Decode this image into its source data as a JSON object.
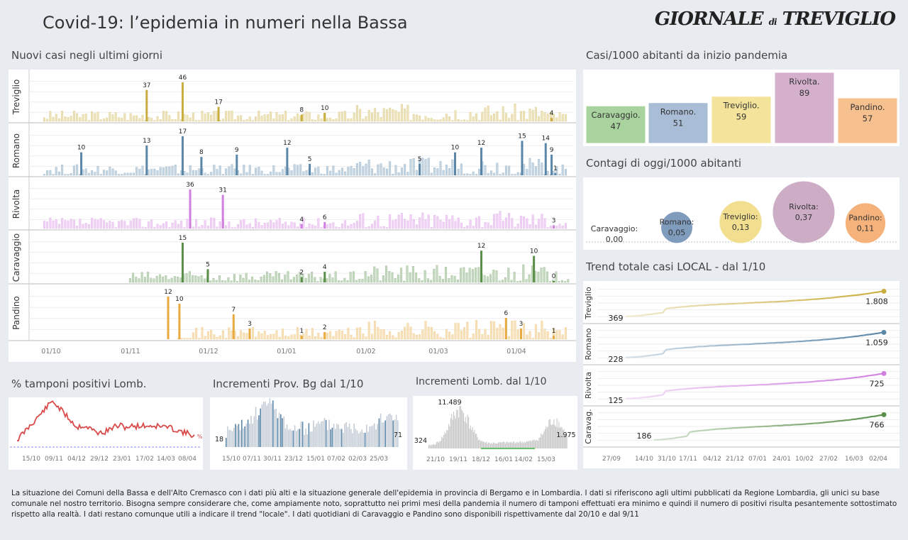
{
  "header": {
    "title": "Covid-19: l’epidemia  in numeri nella Bassa",
    "logo": "GIORNALE di TREVIGLIO"
  },
  "sections": {
    "new_cases": "Nuovi casi negli ultimi  giorni",
    "per1000": "Casi/1000 abitanti da inizio pandemia",
    "today": "Contagi di oggi/1000 abitanti",
    "trend": "Trend totale casi  LOCAL - dal 1/10",
    "tamponi": "% tamponi positivi Lomb.",
    "prov_bg": "Incrementi Prov. Bg dal 1/10",
    "lomb": "Incrementi Lomb. dal 1/10"
  },
  "colors": {
    "Treviglio": "#c9ad3e",
    "Romano": "#5a86a8",
    "Rivolta": "#d07fe0",
    "Caravaggio": "#5a8f4a",
    "Pandino": "#e8a93e"
  },
  "chart_data": [
    {
      "type": "bar",
      "name": "new_cases",
      "x_ticks": [
        "01/10",
        "01/11",
        "01/12",
        "01/01",
        "01/02",
        "01/03",
        "01/04"
      ],
      "series": [
        {
          "name": "Treviglio",
          "annotations": [
            37,
            46,
            17,
            8,
            10,
            4
          ]
        },
        {
          "name": "Romano",
          "annotations": [
            10,
            13,
            17,
            8,
            9,
            12,
            5,
            5,
            10,
            12,
            15,
            14,
            9,
            1
          ]
        },
        {
          "name": "Rivolta",
          "annotations": [
            36,
            31,
            4,
            6,
            3
          ]
        },
        {
          "name": "Caravaggio",
          "annotations": [
            15,
            5,
            2,
            4,
            12,
            10,
            0
          ]
        },
        {
          "name": "Pandino",
          "annotations": [
            12,
            10,
            7,
            3,
            1,
            2,
            6,
            3,
            1
          ]
        }
      ]
    },
    {
      "type": "bar",
      "name": "per1000",
      "categories": [
        "Caravaggio.",
        "Romano.",
        "Treviglio.",
        "Rivolta.",
        "Pandino."
      ],
      "values": [
        47,
        51,
        59,
        89,
        57
      ],
      "fill_colors": [
        "#a9d39e",
        "#a9bdd6",
        "#f4e39a",
        "#d4b0cc",
        "#f7c08f"
      ]
    },
    {
      "type": "scatter",
      "name": "today",
      "categories": [
        "Caravaggio:",
        "Romano:",
        "Treviglio:",
        "Rivolta:",
        "Pandino:"
      ],
      "values": [
        "0,00",
        "0,05",
        "0,13",
        "0,37",
        "0,11"
      ],
      "fill_colors": [
        "#cccccc",
        "#7f9cbd",
        "#f1df8f",
        "#cdadc6",
        "#f5b27a"
      ]
    },
    {
      "type": "line",
      "name": "trend",
      "x_ticks": [
        "27/09",
        "14/10",
        "31/10",
        "17/11",
        "04/12",
        "21/12",
        "07/01",
        "24/01",
        "10/02",
        "27/02",
        "16/03",
        "02/04"
      ],
      "series": [
        {
          "name": "Treviglio",
          "label": "Treviglio",
          "start": "369",
          "end": "1.808"
        },
        {
          "name": "Romano",
          "label": "Romano",
          "start": "228",
          "end": "1.059"
        },
        {
          "name": "Rivolta",
          "label": "Rivolta",
          "start": "125",
          "end": "725"
        },
        {
          "name": "Caravaggio",
          "label": "Caravag.",
          "start": "186",
          "end": "766"
        }
      ]
    },
    {
      "type": "line",
      "name": "tamponi",
      "x_ticks": [
        "15/10",
        "09/11",
        "04/12",
        "29/12",
        "23/01",
        "17/02",
        "14/03",
        "08/04"
      ],
      "end_label": "%"
    },
    {
      "type": "bar",
      "name": "prov_bg",
      "x_ticks": [
        "15/10",
        "07/11",
        "30/11",
        "23/12",
        "15/01",
        "07/02",
        "02/03",
        "25/03"
      ],
      "start": "18",
      "end": "71"
    },
    {
      "type": "area",
      "name": "lomb",
      "x_ticks": [
        "21/10",
        "19/11",
        "18/12",
        "16/01",
        "14/02",
        "15/03"
      ],
      "start": "324",
      "peak": "11.489",
      "end": "1.975"
    }
  ],
  "footer": "La situazione dei Comuni della Bassa e dell'Alto Cremasco con i dati più alti e la situazione generale dell'epidemia in provincia di Bergamo e in Lombardia.  I dati si riferiscono agli ultimi pubblicati da Regione Lombardia, gli unici su base comunale nel  nostro territorio.  Bisogna sempre considerare che, come ampiamente noto, soprattutto nei primi mesi della pandemia il numero di tamponi effettuati era minimo e quindi il numero di positivi risulta pesantemente sottostimato rispetto alla realtà. I dati restano comunque utili a indicare il trend \"locale\".  I dati quotidiani di Caravaggio e Pandino sono disponibili rispettivamente dal 20/10 e dal 9/11"
}
